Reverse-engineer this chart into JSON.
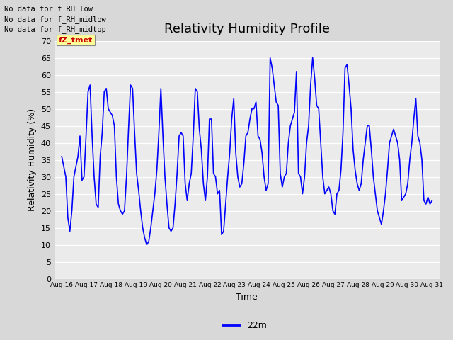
{
  "title": "Relativity Humidity Profile",
  "xlabel": "Time",
  "ylabel": "Relativity Humidity (%)",
  "ylim": [
    0,
    70
  ],
  "yticks": [
    0,
    5,
    10,
    15,
    20,
    25,
    30,
    35,
    40,
    45,
    50,
    55,
    60,
    65,
    70
  ],
  "line_color": "#0000ff",
  "line_width": 1.2,
  "legend_label": "22m",
  "legend_line_color": "#0000ff",
  "fig_bg_color": "#d8d8d8",
  "plot_bg_color": "#ebebeb",
  "title_fontsize": 13,
  "axis_fontsize": 8,
  "annotations_top_left": [
    "No data for f_RH_low",
    "No data for f̅R̅H̅_̅midlow",
    "No data for f̅R̅H̅_̅midtop"
  ],
  "annotations_raw": [
    "No data for f_RH_low",
    "No data for f_RH_midlow",
    "No data for f_RH_midtop"
  ],
  "tooltip_text": "fZ_tmet",
  "tooltip_color": "#cc0000",
  "tooltip_bg": "#ffff99",
  "humidity_values": [
    36,
    33,
    30,
    18,
    14,
    20,
    30,
    33,
    36,
    42,
    29,
    30,
    42,
    55,
    57,
    42,
    30,
    22,
    21,
    36,
    43,
    55,
    56,
    50,
    49,
    48,
    45,
    30,
    22,
    20,
    19,
    20,
    30,
    44,
    57,
    56,
    43,
    31,
    26,
    20,
    15,
    12,
    10,
    11,
    15,
    20,
    25,
    32,
    43,
    56,
    42,
    30,
    22,
    15,
    14,
    15,
    22,
    31,
    42,
    43,
    42,
    28,
    23,
    28,
    31,
    42,
    56,
    55,
    44,
    38,
    28,
    23,
    30,
    47,
    47,
    31,
    30,
    25,
    26,
    13,
    14,
    22,
    30,
    37,
    47,
    53,
    37,
    30,
    27,
    28,
    34,
    42,
    43,
    47,
    50,
    50,
    52,
    42,
    41,
    37,
    30,
    26,
    28,
    65,
    62,
    57,
    52,
    51,
    31,
    27,
    30,
    31,
    40,
    45,
    47,
    49,
    61,
    31,
    30,
    25,
    30,
    40,
    45,
    57,
    65,
    59,
    51,
    50,
    40,
    30,
    25,
    26,
    27,
    25,
    20,
    19,
    25,
    26,
    32,
    43,
    62,
    63,
    57,
    50,
    38,
    32,
    28,
    26,
    28,
    35,
    40,
    45,
    45,
    38,
    30,
    25,
    20,
    18,
    16,
    20,
    25,
    32,
    40,
    42,
    44,
    42,
    40,
    35,
    23,
    24,
    25,
    28,
    35,
    40,
    47,
    53,
    42,
    40,
    35,
    23,
    22,
    24,
    22,
    23
  ]
}
